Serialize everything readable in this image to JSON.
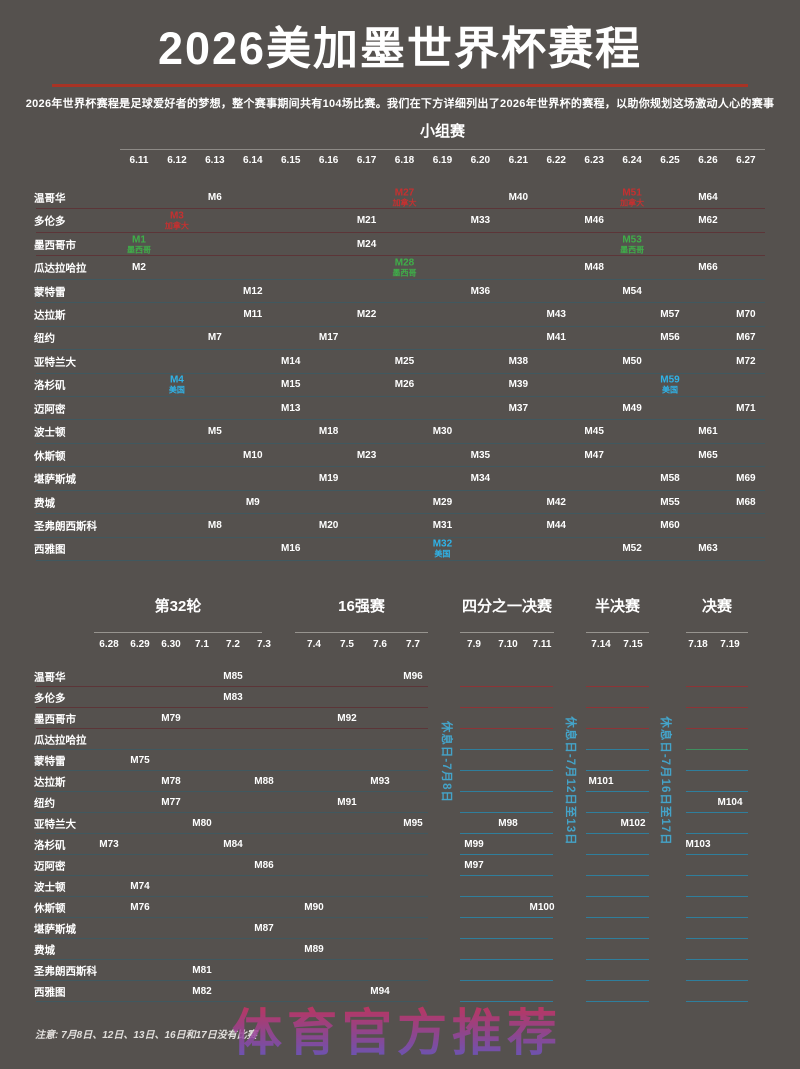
{
  "header": {
    "title": "2026美加墨世界杯赛程",
    "subtitle": "2026年世界杯赛程是足球爱好者的梦想，整个赛事期间共有104场比赛。我们在下方详细列出了2026年世界杯的赛程，以助你规划这场激动人心的赛事"
  },
  "colors": {
    "background": "#55514e",
    "title_rule": "#a83325",
    "mexico_green": "#3fae49",
    "usa_blue": "#2fb3e8",
    "canada_red": "#c53030",
    "rest_day_cyan": "#44a3c8",
    "divider_red": "#5c3538",
    "divider_teal": "#40585f",
    "line_red": "#8e3436",
    "line_cyan": "#2f7e9c",
    "line_green": "#3f8f5f"
  },
  "cities": [
    "温哥华",
    "多伦多",
    "墨西哥市",
    "瓜达拉哈拉",
    "蒙特雷",
    "达拉斯",
    "纽约",
    "亚特兰大",
    "洛杉矶",
    "迈阿密",
    "波士顿",
    "休斯顿",
    "堪萨斯城",
    "费城",
    "圣弗朗西斯科",
    "西雅图"
  ],
  "chart_data": {
    "type": "table",
    "group_stage": {
      "title": "小组赛",
      "dates": [
        "6.11",
        "6.12",
        "6.13",
        "6.14",
        "6.15",
        "6.16",
        "6.17",
        "6.18",
        "6.19",
        "6.20",
        "6.21",
        "6.22",
        "6.23",
        "6.24",
        "6.25",
        "6.26",
        "6.27"
      ],
      "matches": [
        {
          "city": "温哥华",
          "date": "6.13",
          "label": "M6"
        },
        {
          "city": "温哥华",
          "date": "6.18",
          "label": "M27",
          "sub": "加拿大",
          "accent": "canada_red"
        },
        {
          "city": "温哥华",
          "date": "6.21",
          "label": "M40"
        },
        {
          "city": "温哥华",
          "date": "6.24",
          "label": "M51",
          "sub": "加拿大",
          "accent": "canada_red"
        },
        {
          "city": "温哥华",
          "date": "6.26",
          "label": "M64"
        },
        {
          "city": "多伦多",
          "date": "6.12",
          "label": "M3",
          "sub": "加拿大",
          "accent": "canada_red"
        },
        {
          "city": "多伦多",
          "date": "6.17",
          "label": "M21"
        },
        {
          "city": "多伦多",
          "date": "6.20",
          "label": "M33"
        },
        {
          "city": "多伦多",
          "date": "6.23",
          "label": "M46"
        },
        {
          "city": "多伦多",
          "date": "6.26",
          "label": "M62"
        },
        {
          "city": "墨西哥市",
          "date": "6.11",
          "label": "M1",
          "sub": "墨西哥",
          "accent": "mexico_green"
        },
        {
          "city": "墨西哥市",
          "date": "6.17",
          "label": "M24"
        },
        {
          "city": "墨西哥市",
          "date": "6.24",
          "label": "M53",
          "sub": "墨西哥",
          "accent": "mexico_green"
        },
        {
          "city": "瓜达拉哈拉",
          "date": "6.11",
          "label": "M2"
        },
        {
          "city": "瓜达拉哈拉",
          "date": "6.18",
          "label": "M28",
          "sub": "墨西哥",
          "accent": "mexico_green"
        },
        {
          "city": "瓜达拉哈拉",
          "date": "6.23",
          "label": "M48"
        },
        {
          "city": "瓜达拉哈拉",
          "date": "6.26",
          "label": "M66"
        },
        {
          "city": "蒙特雷",
          "date": "6.14",
          "label": "M12"
        },
        {
          "city": "蒙特雷",
          "date": "6.20",
          "label": "M36"
        },
        {
          "city": "蒙特雷",
          "date": "6.24",
          "label": "M54"
        },
        {
          "city": "达拉斯",
          "date": "6.14",
          "label": "M11"
        },
        {
          "city": "达拉斯",
          "date": "6.17",
          "label": "M22"
        },
        {
          "city": "达拉斯",
          "date": "6.22",
          "label": "M43"
        },
        {
          "city": "达拉斯",
          "date": "6.25",
          "label": "M57"
        },
        {
          "city": "达拉斯",
          "date": "6.27",
          "label": "M70"
        },
        {
          "city": "纽约",
          "date": "6.13",
          "label": "M7"
        },
        {
          "city": "纽约",
          "date": "6.16",
          "label": "M17"
        },
        {
          "city": "纽约",
          "date": "6.22",
          "label": "M41"
        },
        {
          "city": "纽约",
          "date": "6.25",
          "label": "M56"
        },
        {
          "city": "纽约",
          "date": "6.27",
          "label": "M67"
        },
        {
          "city": "亚特兰大",
          "date": "6.15",
          "label": "M14"
        },
        {
          "city": "亚特兰大",
          "date": "6.18",
          "label": "M25"
        },
        {
          "city": "亚特兰大",
          "date": "6.21",
          "label": "M38"
        },
        {
          "city": "亚特兰大",
          "date": "6.24",
          "label": "M50"
        },
        {
          "city": "亚特兰大",
          "date": "6.27",
          "label": "M72"
        },
        {
          "city": "洛杉矶",
          "date": "6.12",
          "label": "M4",
          "sub": "美国",
          "accent": "usa_blue"
        },
        {
          "city": "洛杉矶",
          "date": "6.15",
          "label": "M15"
        },
        {
          "city": "洛杉矶",
          "date": "6.18",
          "label": "M26"
        },
        {
          "city": "洛杉矶",
          "date": "6.21",
          "label": "M39"
        },
        {
          "city": "洛杉矶",
          "date": "6.25",
          "label": "M59",
          "sub": "美国",
          "accent": "usa_blue"
        },
        {
          "city": "迈阿密",
          "date": "6.15",
          "label": "M13"
        },
        {
          "city": "迈阿密",
          "date": "6.21",
          "label": "M37"
        },
        {
          "city": "迈阿密",
          "date": "6.24",
          "label": "M49"
        },
        {
          "city": "迈阿密",
          "date": "6.27",
          "label": "M71"
        },
        {
          "city": "波士顿",
          "date": "6.13",
          "label": "M5"
        },
        {
          "city": "波士顿",
          "date": "6.16",
          "label": "M18"
        },
        {
          "city": "波士顿",
          "date": "6.19",
          "label": "M30"
        },
        {
          "city": "波士顿",
          "date": "6.23",
          "label": "M45"
        },
        {
          "city": "波士顿",
          "date": "6.26",
          "label": "M61"
        },
        {
          "city": "休斯顿",
          "date": "6.14",
          "label": "M10"
        },
        {
          "city": "休斯顿",
          "date": "6.17",
          "label": "M23"
        },
        {
          "city": "休斯顿",
          "date": "6.20",
          "label": "M35"
        },
        {
          "city": "休斯顿",
          "date": "6.23",
          "label": "M47"
        },
        {
          "city": "休斯顿",
          "date": "6.26",
          "label": "M65"
        },
        {
          "city": "堪萨斯城",
          "date": "6.16",
          "label": "M19"
        },
        {
          "city": "堪萨斯城",
          "date": "6.20",
          "label": "M34"
        },
        {
          "city": "堪萨斯城",
          "date": "6.25",
          "label": "M58"
        },
        {
          "city": "堪萨斯城",
          "date": "6.27",
          "label": "M69"
        },
        {
          "city": "费城",
          "date": "6.14",
          "label": "M9"
        },
        {
          "city": "费城",
          "date": "6.19",
          "label": "M29"
        },
        {
          "city": "费城",
          "date": "6.22",
          "label": "M42"
        },
        {
          "city": "费城",
          "date": "6.25",
          "label": "M55"
        },
        {
          "city": "费城",
          "date": "6.27",
          "label": "M68"
        },
        {
          "city": "圣弗朗西斯科",
          "date": "6.13",
          "label": "M8"
        },
        {
          "city": "圣弗朗西斯科",
          "date": "6.16",
          "label": "M20"
        },
        {
          "city": "圣弗朗西斯科",
          "date": "6.19",
          "label": "M31"
        },
        {
          "city": "圣弗朗西斯科",
          "date": "6.22",
          "label": "M44"
        },
        {
          "city": "圣弗朗西斯科",
          "date": "6.25",
          "label": "M60"
        },
        {
          "city": "西雅图",
          "date": "6.15",
          "label": "M16"
        },
        {
          "city": "西雅图",
          "date": "6.19",
          "label": "M32",
          "sub": "美国",
          "accent": "usa_blue"
        },
        {
          "city": "西雅图",
          "date": "6.24",
          "label": "M52"
        },
        {
          "city": "西雅图",
          "date": "6.26",
          "label": "M63"
        }
      ]
    },
    "knockout": {
      "sections": [
        {
          "title": "第32轮",
          "dates": [
            "6.28",
            "6.29",
            "6.30",
            "7.1",
            "7.2",
            "7.3"
          ]
        },
        {
          "title": "16强赛",
          "dates": [
            "7.4",
            "7.5",
            "7.6",
            "7.7"
          ]
        },
        {
          "title": "四分之一决赛",
          "dates": [
            "7.9",
            "7.10",
            "7.11"
          ]
        },
        {
          "title": "半决赛",
          "dates": [
            "7.14",
            "7.15"
          ]
        },
        {
          "title": "决赛",
          "dates": [
            "7.18",
            "7.19"
          ]
        }
      ],
      "matches": [
        {
          "city": "洛杉矶",
          "date": "6.28",
          "label": "M73"
        },
        {
          "city": "波士顿",
          "date": "6.29",
          "label": "M74"
        },
        {
          "city": "蒙特雷",
          "date": "6.29",
          "label": "M75"
        },
        {
          "city": "休斯顿",
          "date": "6.29",
          "label": "M76"
        },
        {
          "city": "纽约",
          "date": "6.30",
          "label": "M77"
        },
        {
          "city": "达拉斯",
          "date": "6.30",
          "label": "M78"
        },
        {
          "city": "墨西哥市",
          "date": "6.30",
          "label": "M79"
        },
        {
          "city": "亚特兰大",
          "date": "7.1",
          "label": "M80"
        },
        {
          "city": "圣弗朗西斯科",
          "date": "7.1",
          "label": "M81"
        },
        {
          "city": "西雅图",
          "date": "7.1",
          "label": "M82"
        },
        {
          "city": "多伦多",
          "date": "7.2",
          "label": "M83"
        },
        {
          "city": "洛杉矶",
          "date": "7.2",
          "label": "M84"
        },
        {
          "city": "温哥华",
          "date": "7.2",
          "label": "M85"
        },
        {
          "city": "迈阿密",
          "date": "7.3",
          "label": "M86"
        },
        {
          "city": "堪萨斯城",
          "date": "7.3",
          "label": "M87"
        },
        {
          "city": "达拉斯",
          "date": "7.3",
          "label": "M88"
        },
        {
          "city": "费城",
          "date": "7.4",
          "label": "M89"
        },
        {
          "city": "休斯顿",
          "date": "7.4",
          "label": "M90"
        },
        {
          "city": "纽约",
          "date": "7.5",
          "label": "M91"
        },
        {
          "city": "墨西哥市",
          "date": "7.5",
          "label": "M92"
        },
        {
          "city": "达拉斯",
          "date": "7.6",
          "label": "M93"
        },
        {
          "city": "西雅图",
          "date": "7.6",
          "label": "M94"
        },
        {
          "city": "亚特兰大",
          "date": "7.7",
          "label": "M95"
        },
        {
          "city": "温哥华",
          "date": "7.7",
          "label": "M96"
        },
        {
          "city": "迈阿密",
          "date": "7.9",
          "label": "M97"
        },
        {
          "city": "亚特兰大",
          "date": "7.10",
          "label": "M98"
        },
        {
          "city": "洛杉矶",
          "date": "7.9",
          "label": "M99"
        },
        {
          "city": "休斯顿",
          "date": "7.11",
          "label": "M100"
        },
        {
          "city": "达拉斯",
          "date": "7.14",
          "label": "M101"
        },
        {
          "city": "亚特兰大",
          "date": "7.15",
          "label": "M102"
        },
        {
          "city": "洛杉矶",
          "date": "7.18",
          "label": "M103"
        },
        {
          "city": "纽约",
          "date": "7.19",
          "label": "M104"
        }
      ],
      "rest_days": [
        "休息日-7月8日",
        "休息日-7月12日至13日",
        "休息日-7月16日至17日"
      ]
    }
  },
  "footer": {
    "note": "注意: 7月8日、12日、13日、16日和17日没有比赛",
    "watermark": "体育官方推荐"
  }
}
